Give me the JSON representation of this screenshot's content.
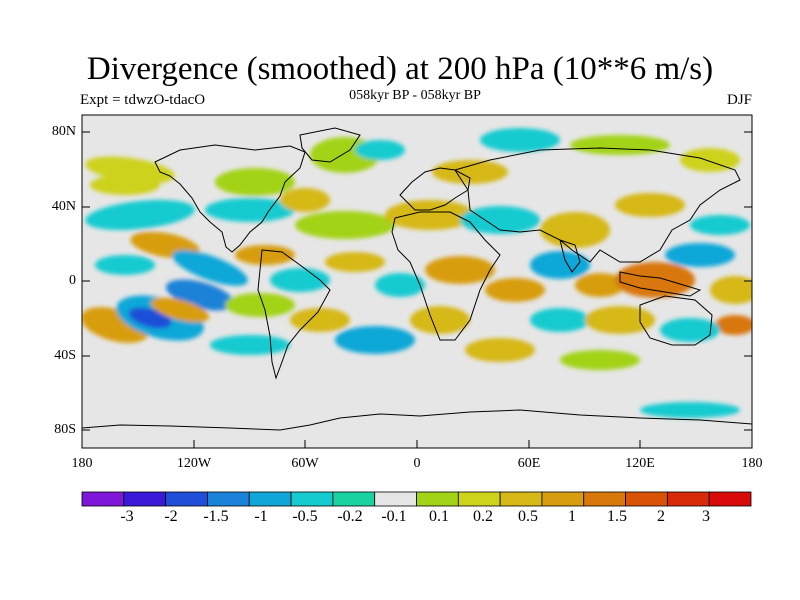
{
  "title": "Divergence (smoothed) at 200 hPa (10**6 m/s)",
  "experiment_label": "Expt = tdwzO-tdacO",
  "period_label": "058kyr BP - 058kyr BP",
  "season_label": "DJF",
  "lat_ticks": [
    "80N",
    "40N",
    "0",
    "40S",
    "80S"
  ],
  "lon_ticks": [
    "180",
    "120W",
    "60W",
    "0",
    "60E",
    "120E",
    "180"
  ],
  "colorbar": {
    "colors": [
      "#7f17d8",
      "#3a19d8",
      "#1f4fd8",
      "#1a82d8",
      "#10a7d8",
      "#15cbd0",
      "#1ad2a0",
      "#e6e6e6",
      "#a3d316",
      "#cdd21a",
      "#d6b817",
      "#d89d0f",
      "#d8770a",
      "#d85305",
      "#d82a08",
      "#d80a0a"
    ],
    "labels": [
      "-3",
      "-2",
      "-1.5",
      "-1",
      "-0.5",
      "-0.2",
      "-0.1",
      "0.1",
      "0.2",
      "0.5",
      "1",
      "1.5",
      "2",
      "3"
    ]
  }
}
